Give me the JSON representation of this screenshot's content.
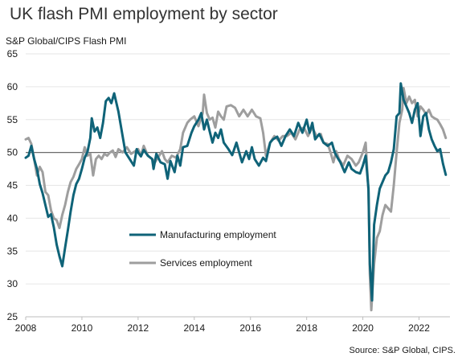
{
  "chart_data": {
    "type": "line",
    "title": "UK flash PMI employment by sector",
    "subtitle": "S&P Global/CIPS Flash PMI",
    "source": "Source: S&P Global, CIPS.",
    "xlabel": "",
    "ylabel": "",
    "xlim": [
      2008,
      2023.1
    ],
    "ylim": [
      25,
      65
    ],
    "x_ticks": [
      2008,
      2010,
      2012,
      2014,
      2016,
      2018,
      2020,
      2022
    ],
    "y_ticks": [
      25,
      30,
      35,
      40,
      45,
      50,
      55,
      60,
      65
    ],
    "reference_line": 50,
    "grid": "horizontal",
    "legend_placement": "center-left",
    "series": [
      {
        "name": "Manufacturing employment",
        "color": "#0f6378",
        "points": [
          [
            2008.0,
            49.2
          ],
          [
            2008.1,
            49.5
          ],
          [
            2008.2,
            51.0
          ],
          [
            2008.3,
            49.0
          ],
          [
            2008.4,
            47.5
          ],
          [
            2008.5,
            45.2
          ],
          [
            2008.6,
            43.8
          ],
          [
            2008.7,
            42.0
          ],
          [
            2008.8,
            40.2
          ],
          [
            2008.9,
            40.6
          ],
          [
            2009.0,
            38.6
          ],
          [
            2009.1,
            36.0
          ],
          [
            2009.2,
            34.2
          ],
          [
            2009.3,
            32.7
          ],
          [
            2009.4,
            35.5
          ],
          [
            2009.5,
            38.2
          ],
          [
            2009.6,
            41.0
          ],
          [
            2009.7,
            43.5
          ],
          [
            2009.8,
            45.2
          ],
          [
            2009.9,
            46.0
          ],
          [
            2010.0,
            47.5
          ],
          [
            2010.1,
            49.2
          ],
          [
            2010.2,
            50.1
          ],
          [
            2010.3,
            52.2
          ],
          [
            2010.35,
            55.2
          ],
          [
            2010.45,
            53.2
          ],
          [
            2010.55,
            53.8
          ],
          [
            2010.65,
            52.2
          ],
          [
            2010.75,
            54.5
          ],
          [
            2010.85,
            57.8
          ],
          [
            2010.95,
            58.3
          ],
          [
            2011.05,
            57.5
          ],
          [
            2011.15,
            59.0
          ],
          [
            2011.3,
            56.2
          ],
          [
            2011.45,
            52.5
          ],
          [
            2011.55,
            50.0
          ],
          [
            2011.7,
            49.0
          ],
          [
            2011.85,
            48.0
          ],
          [
            2011.95,
            50.5
          ],
          [
            2012.0,
            50.0
          ],
          [
            2012.1,
            49.4
          ],
          [
            2012.2,
            50.4
          ],
          [
            2012.35,
            49.5
          ],
          [
            2012.5,
            49.0
          ],
          [
            2012.55,
            47.5
          ],
          [
            2012.65,
            49.8
          ],
          [
            2012.8,
            48.5
          ],
          [
            2012.95,
            48.2
          ],
          [
            2013.05,
            46.0
          ],
          [
            2013.15,
            48.7
          ],
          [
            2013.3,
            47.0
          ],
          [
            2013.4,
            49.5
          ],
          [
            2013.5,
            48.0
          ],
          [
            2013.6,
            50.8
          ],
          [
            2013.75,
            51.0
          ],
          [
            2013.9,
            53.0
          ],
          [
            2014.0,
            54.0
          ],
          [
            2014.15,
            55.0
          ],
          [
            2014.25,
            56.0
          ],
          [
            2014.35,
            53.5
          ],
          [
            2014.45,
            55.0
          ],
          [
            2014.55,
            53.2
          ],
          [
            2014.65,
            51.5
          ],
          [
            2014.75,
            53.0
          ],
          [
            2014.85,
            52.2
          ],
          [
            2014.95,
            53.5
          ],
          [
            2015.05,
            51.5
          ],
          [
            2015.2,
            50.6
          ],
          [
            2015.35,
            49.6
          ],
          [
            2015.5,
            51.5
          ],
          [
            2015.6,
            50.0
          ],
          [
            2015.7,
            48.5
          ],
          [
            2015.85,
            50.2
          ],
          [
            2015.95,
            49.0
          ],
          [
            2016.05,
            50.8
          ],
          [
            2016.15,
            49.0
          ],
          [
            2016.3,
            48.0
          ],
          [
            2016.45,
            49.2
          ],
          [
            2016.55,
            48.7
          ],
          [
            2016.7,
            51.5
          ],
          [
            2016.8,
            52.0
          ],
          [
            2016.95,
            52.4
          ],
          [
            2017.1,
            51.0
          ],
          [
            2017.25,
            52.5
          ],
          [
            2017.4,
            53.5
          ],
          [
            2017.55,
            52.5
          ],
          [
            2017.7,
            54.5
          ],
          [
            2017.85,
            53.0
          ],
          [
            2018.0,
            55.0
          ],
          [
            2018.1,
            53.0
          ],
          [
            2018.2,
            54.5
          ],
          [
            2018.3,
            52.0
          ],
          [
            2018.45,
            52.8
          ],
          [
            2018.6,
            51.5
          ],
          [
            2018.75,
            51.0
          ],
          [
            2018.9,
            51.5
          ],
          [
            2019.0,
            50.0
          ],
          [
            2019.1,
            49.2
          ],
          [
            2019.2,
            48.5
          ],
          [
            2019.35,
            47.0
          ],
          [
            2019.5,
            48.5
          ],
          [
            2019.6,
            47.5
          ],
          [
            2019.75,
            47.0
          ],
          [
            2019.9,
            46.8
          ],
          [
            2020.0,
            48.0
          ],
          [
            2020.1,
            49.5
          ],
          [
            2020.2,
            44.5
          ],
          [
            2020.25,
            33.0
          ],
          [
            2020.33,
            27.5
          ],
          [
            2020.4,
            39.0
          ],
          [
            2020.5,
            42.0
          ],
          [
            2020.6,
            44.5
          ],
          [
            2020.7,
            45.5
          ],
          [
            2020.8,
            46.5
          ],
          [
            2020.9,
            47.0
          ],
          [
            2021.0,
            48.5
          ],
          [
            2021.1,
            50.5
          ],
          [
            2021.2,
            55.5
          ],
          [
            2021.3,
            56.0
          ],
          [
            2021.35,
            60.5
          ],
          [
            2021.45,
            58.0
          ],
          [
            2021.55,
            57.0
          ],
          [
            2021.65,
            56.0
          ],
          [
            2021.75,
            54.5
          ],
          [
            2021.85,
            56.5
          ],
          [
            2021.95,
            57.5
          ],
          [
            2022.05,
            52.5
          ],
          [
            2022.15,
            55.5
          ],
          [
            2022.25,
            56.0
          ],
          [
            2022.35,
            53.5
          ],
          [
            2022.45,
            52.0
          ],
          [
            2022.55,
            51.0
          ],
          [
            2022.65,
            50.2
          ],
          [
            2022.75,
            50.5
          ],
          [
            2022.85,
            48.3
          ],
          [
            2022.95,
            46.6
          ]
        ]
      },
      {
        "name": "Services employment",
        "color": "#9e9e9e",
        "points": [
          [
            2008.0,
            52.0
          ],
          [
            2008.1,
            52.2
          ],
          [
            2008.2,
            51.3
          ],
          [
            2008.3,
            49.0
          ],
          [
            2008.4,
            46.5
          ],
          [
            2008.5,
            47.8
          ],
          [
            2008.6,
            47.0
          ],
          [
            2008.7,
            44.0
          ],
          [
            2008.8,
            43.5
          ],
          [
            2008.9,
            41.2
          ],
          [
            2009.0,
            40.0
          ],
          [
            2009.1,
            39.7
          ],
          [
            2009.2,
            38.5
          ],
          [
            2009.3,
            40.5
          ],
          [
            2009.4,
            42.0
          ],
          [
            2009.5,
            44.0
          ],
          [
            2009.6,
            45.5
          ],
          [
            2009.7,
            46.3
          ],
          [
            2009.8,
            47.5
          ],
          [
            2009.9,
            48.2
          ],
          [
            2010.0,
            49.0
          ],
          [
            2010.1,
            50.8
          ],
          [
            2010.2,
            49.5
          ],
          [
            2010.3,
            49.8
          ],
          [
            2010.4,
            46.5
          ],
          [
            2010.5,
            49.0
          ],
          [
            2010.6,
            49.5
          ],
          [
            2010.7,
            49.0
          ],
          [
            2010.8,
            49.8
          ],
          [
            2010.9,
            49.5
          ],
          [
            2011.0,
            50.0
          ],
          [
            2011.1,
            50.3
          ],
          [
            2011.2,
            49.3
          ],
          [
            2011.3,
            50.5
          ],
          [
            2011.45,
            50.0
          ],
          [
            2011.6,
            50.8
          ],
          [
            2011.75,
            49.8
          ],
          [
            2011.9,
            50.2
          ],
          [
            2012.0,
            50.5
          ],
          [
            2012.1,
            49.5
          ],
          [
            2012.2,
            51.0
          ],
          [
            2012.35,
            49.5
          ],
          [
            2012.5,
            49.0
          ],
          [
            2012.6,
            48.5
          ],
          [
            2012.75,
            49.5
          ],
          [
            2012.85,
            50.2
          ],
          [
            2012.95,
            49.0
          ],
          [
            2013.05,
            48.5
          ],
          [
            2013.2,
            49.5
          ],
          [
            2013.35,
            49.2
          ],
          [
            2013.5,
            50.5
          ],
          [
            2013.6,
            53.0
          ],
          [
            2013.75,
            54.5
          ],
          [
            2013.85,
            55.0
          ],
          [
            2014.0,
            55.5
          ],
          [
            2014.15,
            54.0
          ],
          [
            2014.3,
            56.0
          ],
          [
            2014.35,
            58.8
          ],
          [
            2014.45,
            56.0
          ],
          [
            2014.55,
            55.0
          ],
          [
            2014.65,
            55.3
          ],
          [
            2014.75,
            53.8
          ],
          [
            2014.85,
            56.2
          ],
          [
            2014.95,
            55.5
          ],
          [
            2015.05,
            55.0
          ],
          [
            2015.15,
            57.0
          ],
          [
            2015.3,
            57.2
          ],
          [
            2015.45,
            56.8
          ],
          [
            2015.6,
            55.5
          ],
          [
            2015.75,
            56.5
          ],
          [
            2015.9,
            55.5
          ],
          [
            2016.05,
            56.5
          ],
          [
            2016.2,
            55.5
          ],
          [
            2016.35,
            55.2
          ],
          [
            2016.45,
            53.0
          ],
          [
            2016.55,
            49.5
          ],
          [
            2016.7,
            51.5
          ],
          [
            2016.85,
            52.5
          ],
          [
            2017.0,
            51.8
          ],
          [
            2017.15,
            52.5
          ],
          [
            2017.3,
            52.5
          ],
          [
            2017.45,
            53.0
          ],
          [
            2017.6,
            52.0
          ],
          [
            2017.75,
            53.5
          ],
          [
            2017.9,
            53.8
          ],
          [
            2018.05,
            52.5
          ],
          [
            2018.2,
            53.8
          ],
          [
            2018.35,
            52.5
          ],
          [
            2018.5,
            52.8
          ],
          [
            2018.6,
            51.5
          ],
          [
            2018.75,
            51.3
          ],
          [
            2018.85,
            50.0
          ],
          [
            2018.95,
            48.5
          ],
          [
            2019.05,
            50.2
          ],
          [
            2019.15,
            49.0
          ],
          [
            2019.3,
            48.0
          ],
          [
            2019.45,
            49.5
          ],
          [
            2019.6,
            49.0
          ],
          [
            2019.75,
            48.0
          ],
          [
            2019.85,
            48.5
          ],
          [
            2020.0,
            50.0
          ],
          [
            2020.1,
            51.5
          ],
          [
            2020.2,
            44.0
          ],
          [
            2020.25,
            31.5
          ],
          [
            2020.3,
            26.0
          ],
          [
            2020.4,
            33.0
          ],
          [
            2020.5,
            37.0
          ],
          [
            2020.6,
            38.0
          ],
          [
            2020.7,
            40.5
          ],
          [
            2020.8,
            42.0
          ],
          [
            2020.9,
            41.5
          ],
          [
            2021.0,
            41.0
          ],
          [
            2021.1,
            45.0
          ],
          [
            2021.2,
            50.0
          ],
          [
            2021.3,
            54.5
          ],
          [
            2021.4,
            56.5
          ],
          [
            2021.45,
            59.8
          ],
          [
            2021.55,
            57.5
          ],
          [
            2021.65,
            58.5
          ],
          [
            2021.75,
            57.5
          ],
          [
            2021.85,
            58.0
          ],
          [
            2021.95,
            55.5
          ],
          [
            2022.05,
            57.0
          ],
          [
            2022.15,
            56.5
          ],
          [
            2022.25,
            55.8
          ],
          [
            2022.35,
            56.5
          ],
          [
            2022.45,
            55.5
          ],
          [
            2022.55,
            55.2
          ],
          [
            2022.65,
            55.0
          ],
          [
            2022.75,
            54.3
          ],
          [
            2022.85,
            53.5
          ],
          [
            2022.95,
            52.2
          ]
        ]
      }
    ]
  }
}
